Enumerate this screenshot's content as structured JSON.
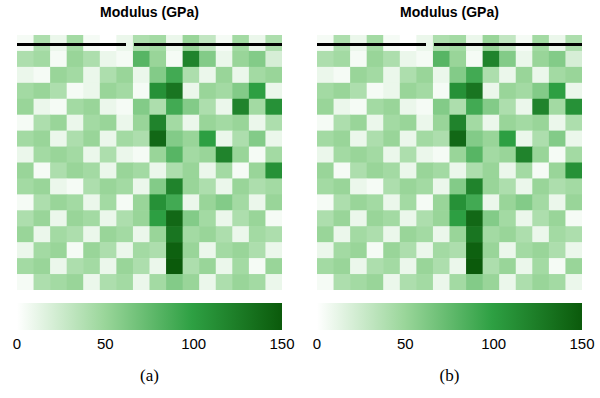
{
  "chart_data": [
    {
      "type": "heatmap",
      "title": "Modulus (GPa)",
      "panel": "(a)",
      "color": "#0b5a0b",
      "tick_labels": false,
      "cells": [
        [
          5,
          40,
          10,
          45,
          5,
          0,
          10,
          40,
          45,
          10,
          50,
          30,
          5,
          45,
          10,
          40
        ],
        [
          40,
          45,
          5,
          50,
          40,
          10,
          5,
          80,
          50,
          5,
          120,
          60,
          10,
          50,
          60,
          20
        ],
        [
          10,
          5,
          50,
          45,
          10,
          40,
          50,
          10,
          60,
          90,
          40,
          10,
          50,
          10,
          45,
          50
        ],
        [
          45,
          50,
          40,
          5,
          10,
          50,
          45,
          5,
          110,
          130,
          10,
          50,
          45,
          60,
          100,
          10
        ],
        [
          50,
          10,
          5,
          45,
          50,
          10,
          5,
          60,
          40,
          90,
          60,
          40,
          10,
          120,
          45,
          110
        ],
        [
          5,
          40,
          50,
          10,
          45,
          50,
          10,
          50,
          120,
          45,
          10,
          50,
          45,
          50,
          10,
          40
        ],
        [
          45,
          50,
          10,
          40,
          50,
          10,
          45,
          40,
          140,
          60,
          50,
          100,
          10,
          40,
          60,
          10
        ],
        [
          10,
          45,
          50,
          45,
          10,
          40,
          10,
          5,
          50,
          80,
          45,
          50,
          120,
          50,
          5,
          45
        ],
        [
          50,
          5,
          40,
          50,
          45,
          10,
          50,
          45,
          10,
          40,
          50,
          10,
          45,
          5,
          50,
          110
        ],
        [
          45,
          50,
          10,
          5,
          40,
          50,
          45,
          10,
          60,
          120,
          50,
          40,
          10,
          50,
          40,
          45
        ],
        [
          5,
          40,
          50,
          45,
          10,
          45,
          5,
          50,
          110,
          90,
          10,
          50,
          60,
          45,
          10,
          50
        ],
        [
          40,
          50,
          10,
          50,
          45,
          10,
          40,
          50,
          100,
          140,
          60,
          45,
          10,
          40,
          50,
          5
        ],
        [
          50,
          10,
          45,
          40,
          10,
          50,
          45,
          10,
          50,
          130,
          45,
          50,
          40,
          10,
          45,
          40
        ],
        [
          10,
          45,
          50,
          5,
          50,
          40,
          10,
          45,
          40,
          145,
          50,
          10,
          45,
          50,
          40,
          10
        ],
        [
          45,
          50,
          10,
          40,
          45,
          10,
          50,
          40,
          10,
          150,
          40,
          50,
          10,
          45,
          5,
          50
        ],
        [
          5,
          40,
          45,
          50,
          10,
          40,
          45,
          10,
          45,
          60,
          50,
          10,
          40,
          50,
          45,
          10
        ]
      ],
      "colorbar": {
        "range": [
          0,
          150
        ],
        "ticks": [
          0,
          50,
          100,
          150
        ]
      }
    },
    {
      "type": "heatmap",
      "title": "Modulus (GPa)",
      "panel": "(b)",
      "color": "#0b5a0b",
      "tick_labels": false,
      "cells": [
        [
          5,
          40,
          10,
          45,
          5,
          0,
          10,
          40,
          45,
          10,
          50,
          30,
          5,
          45,
          10,
          40
        ],
        [
          40,
          45,
          5,
          50,
          40,
          10,
          5,
          80,
          50,
          5,
          120,
          60,
          10,
          50,
          60,
          20
        ],
        [
          10,
          5,
          50,
          45,
          10,
          40,
          50,
          10,
          60,
          90,
          40,
          10,
          50,
          10,
          45,
          50
        ],
        [
          45,
          50,
          40,
          5,
          10,
          50,
          45,
          5,
          110,
          130,
          10,
          50,
          45,
          60,
          100,
          10
        ],
        [
          50,
          10,
          5,
          45,
          50,
          10,
          5,
          60,
          40,
          90,
          60,
          40,
          10,
          120,
          45,
          110
        ],
        [
          5,
          40,
          50,
          10,
          45,
          50,
          10,
          50,
          120,
          45,
          10,
          50,
          45,
          50,
          10,
          40
        ],
        [
          45,
          50,
          10,
          40,
          50,
          10,
          45,
          40,
          140,
          60,
          50,
          100,
          10,
          40,
          60,
          10
        ],
        [
          10,
          45,
          50,
          45,
          10,
          40,
          10,
          5,
          50,
          80,
          45,
          50,
          120,
          50,
          5,
          45
        ],
        [
          50,
          5,
          40,
          50,
          45,
          10,
          50,
          45,
          10,
          40,
          50,
          10,
          45,
          5,
          50,
          110
        ],
        [
          45,
          50,
          10,
          5,
          40,
          50,
          45,
          10,
          60,
          120,
          50,
          40,
          10,
          50,
          40,
          45
        ],
        [
          5,
          40,
          50,
          45,
          10,
          45,
          5,
          50,
          110,
          90,
          10,
          50,
          60,
          45,
          10,
          50
        ],
        [
          40,
          50,
          10,
          50,
          45,
          10,
          40,
          50,
          100,
          140,
          60,
          45,
          10,
          40,
          50,
          5
        ],
        [
          50,
          10,
          45,
          40,
          10,
          50,
          45,
          10,
          50,
          130,
          45,
          50,
          40,
          10,
          45,
          40
        ],
        [
          10,
          45,
          50,
          5,
          50,
          40,
          10,
          45,
          40,
          145,
          50,
          10,
          45,
          50,
          40,
          10
        ],
        [
          45,
          50,
          10,
          40,
          45,
          10,
          50,
          40,
          10,
          150,
          40,
          50,
          10,
          45,
          5,
          50
        ],
        [
          5,
          40,
          45,
          50,
          10,
          40,
          45,
          10,
          45,
          60,
          50,
          10,
          40,
          50,
          45,
          10
        ]
      ],
      "colorbar": {
        "range": [
          0,
          150
        ],
        "ticks": [
          0,
          50,
          100,
          150
        ]
      }
    }
  ]
}
